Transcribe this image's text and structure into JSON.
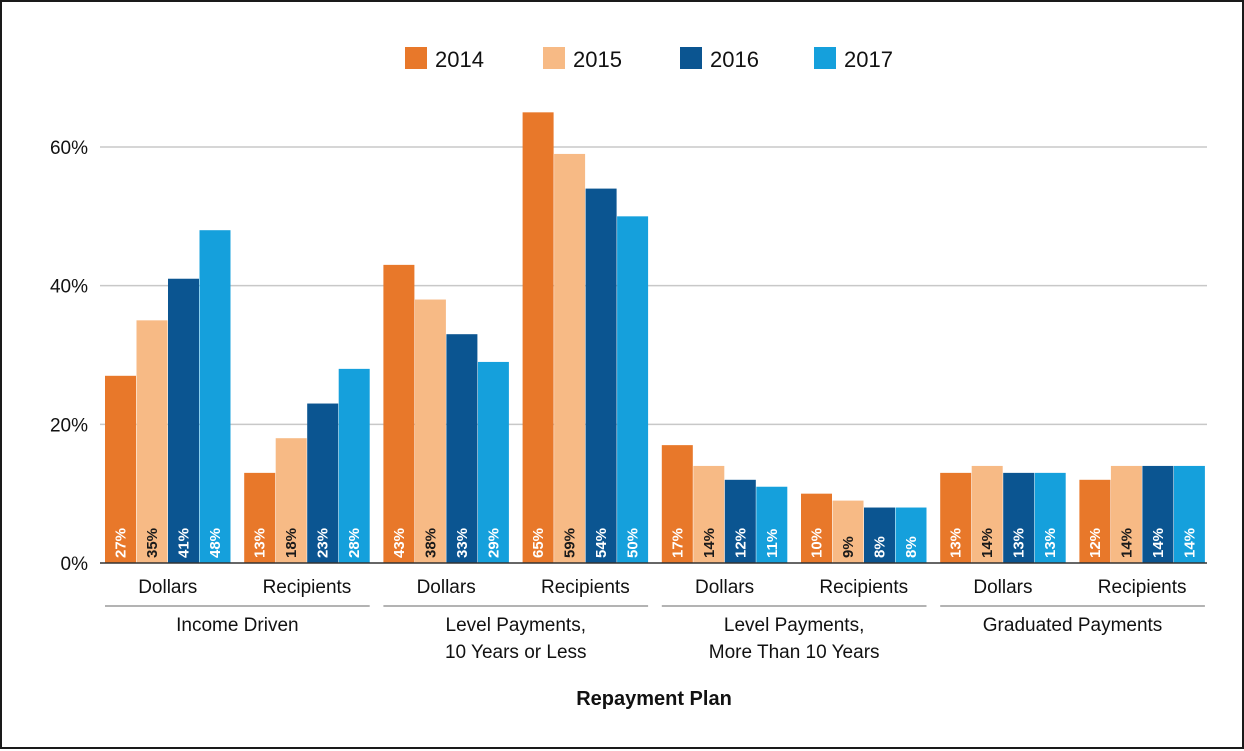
{
  "chart_data": {
    "type": "bar",
    "xlabel": "Repayment Plan",
    "ylabel": "",
    "ylim": [
      0,
      65
    ],
    "yticks": [
      0,
      20,
      40,
      60
    ],
    "ytick_labels": [
      "0%",
      "20%",
      "40%",
      "60%"
    ],
    "grid": true,
    "legend_position": "top",
    "categories": [
      {
        "group": "Income Driven",
        "label": "Dollars"
      },
      {
        "group": "Income Driven",
        "label": "Recipients"
      },
      {
        "group": "Level Payments, 10 Years or Less",
        "label": "Dollars"
      },
      {
        "group": "Level Payments, 10 Years or Less",
        "label": "Recipients"
      },
      {
        "group": "Level Payments, More Than 10 Years",
        "label": "Dollars"
      },
      {
        "group": "Level Payments, More Than 10 Years",
        "label": "Recipients"
      },
      {
        "group": "Graduated Payments",
        "label": "Dollars"
      },
      {
        "group": "Graduated Payments",
        "label": "Recipients"
      }
    ],
    "groups": [
      {
        "lines": [
          "Income Driven"
        ]
      },
      {
        "lines": [
          "Level Payments,",
          "10 Years or Less"
        ]
      },
      {
        "lines": [
          "Level Payments,",
          "More Than 10 Years"
        ]
      },
      {
        "lines": [
          "Graduated Payments"
        ]
      }
    ],
    "series": [
      {
        "name": "2014",
        "color": "#e8782a",
        "label_color": "#ffffff",
        "values": [
          27,
          13,
          43,
          65,
          17,
          10,
          13,
          12
        ],
        "labels": [
          "27%",
          "13%",
          "43%",
          "65%",
          "17%",
          "10%",
          "13%",
          "12%"
        ]
      },
      {
        "name": "2015",
        "color": "#f7ba85",
        "label_color": "#1a1a1a",
        "values": [
          35,
          18,
          38,
          59,
          14,
          9,
          14,
          14
        ],
        "labels": [
          "35%",
          "18%",
          "38%",
          "59%",
          "14%",
          "9%",
          "14%",
          "14%"
        ]
      },
      {
        "name": "2016",
        "color": "#0b5591",
        "label_color": "#ffffff",
        "values": [
          41,
          23,
          33,
          54,
          12,
          8,
          13,
          14
        ],
        "labels": [
          "41%",
          "23%",
          "33%",
          "54%",
          "12%",
          "8%",
          "13%",
          "14%"
        ]
      },
      {
        "name": "2017",
        "color": "#15a0dc",
        "label_color": "#ffffff",
        "values": [
          48,
          28,
          29,
          50,
          11,
          8,
          13,
          14
        ],
        "labels": [
          "48%",
          "28%",
          "29%",
          "50%",
          "11%",
          "8%",
          "13%",
          "14%"
        ]
      }
    ]
  },
  "colors": {
    "gridline": "#c8c8c8",
    "axis": "#333333",
    "separator": "#9a9a9a"
  }
}
